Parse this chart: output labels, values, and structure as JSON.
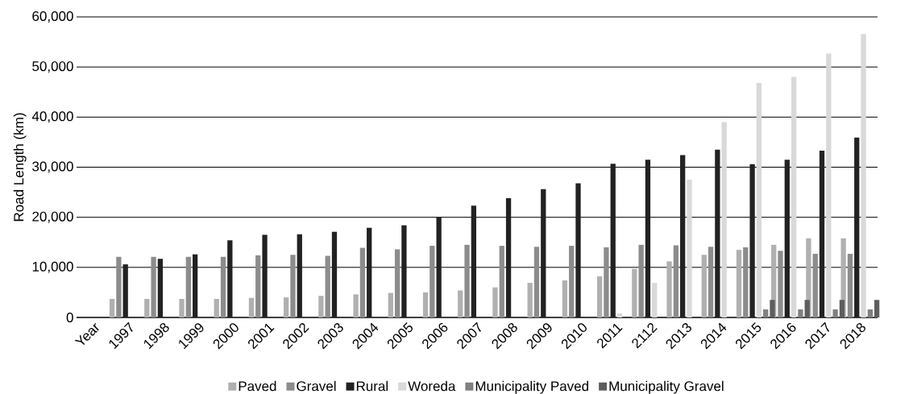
{
  "chart_data": {
    "type": "bar",
    "ylabel": "Road Length (km)",
    "categories": [
      "Year",
      "1997",
      "1998",
      "1999",
      "2000",
      "2001",
      "2002",
      "2003",
      "2004",
      "2005",
      "2006",
      "2007",
      "2008",
      "2009",
      "2010",
      "2011",
      "2112",
      "2013",
      "2014",
      "2015",
      "2016",
      "2017",
      "2018"
    ],
    "series": [
      {
        "name": "Paved",
        "color": "#b0b0b0",
        "values": [
          null,
          3700,
          3700,
          3700,
          3700,
          3900,
          4000,
          4300,
          4600,
          4900,
          5000,
          5400,
          6000,
          6900,
          7400,
          8200,
          9700,
          11200,
          12500,
          13500,
          14500,
          15800,
          15800
        ]
      },
      {
        "name": "Gravel",
        "color": "#8c8c8c",
        "values": [
          null,
          12100,
          12100,
          12100,
          12100,
          12400,
          12500,
          12300,
          13900,
          13600,
          14300,
          14500,
          14300,
          14100,
          14300,
          14000,
          14500,
          14400,
          14100,
          14000,
          13300,
          12700,
          12700
        ]
      },
      {
        "name": "Rural",
        "color": "#222222",
        "values": [
          null,
          10600,
          11700,
          12600,
          15400,
          16500,
          16600,
          17100,
          17900,
          18400,
          20000,
          22300,
          23800,
          25600,
          26800,
          30700,
          31500,
          32400,
          33500,
          30600,
          31500,
          33300,
          35900
        ]
      },
      {
        "name": "Woreda",
        "color": "#d9d9d9",
        "values": [
          null,
          null,
          null,
          null,
          null,
          null,
          null,
          null,
          null,
          null,
          null,
          null,
          null,
          null,
          null,
          800,
          6900,
          27500,
          39000,
          46800,
          48000,
          52700,
          56600
        ]
      },
      {
        "name": "Municipality Paved",
        "color": "#808080",
        "values": [
          null,
          null,
          null,
          null,
          null,
          null,
          null,
          null,
          null,
          null,
          null,
          null,
          null,
          null,
          null,
          null,
          null,
          null,
          null,
          1600,
          1600,
          1600,
          1600
        ]
      },
      {
        "name": "Municipality Gravel",
        "color": "#5e5e5e",
        "values": [
          null,
          null,
          null,
          null,
          null,
          null,
          null,
          null,
          null,
          null,
          null,
          null,
          null,
          null,
          null,
          null,
          null,
          null,
          null,
          3500,
          3500,
          3500,
          3500
        ]
      }
    ],
    "ylim": [
      0,
      60000
    ],
    "yticks": [
      0,
      {
        "value": 10000,
        "label": "10,000"
      },
      {
        "value": 20000,
        "label": "20,000"
      },
      {
        "value": 30000,
        "label": "30,000"
      },
      {
        "value": 40000,
        "label": "40,000"
      },
      {
        "value": 50000,
        "label": "50,000"
      },
      {
        "value": 60000,
        "label": "60,000"
      }
    ],
    "grid": "y",
    "legend": "bottom"
  }
}
